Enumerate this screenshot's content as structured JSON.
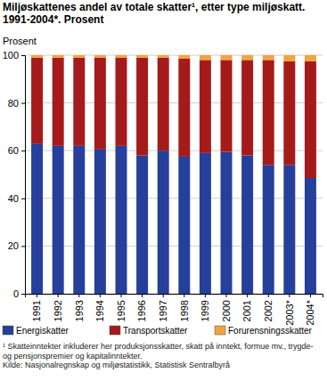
{
  "chart_data": {
    "type": "bar",
    "stacked": true,
    "title": "Miljøskattenes andel av totale skatter¹, etter type miljøskatt. 1991-2004*. Prosent",
    "y_label": "Prosent",
    "categories": [
      "1991",
      "1992",
      "1993",
      "1994",
      "1995",
      "1996",
      "1997",
      "1998",
      "1999",
      "2000",
      "2001",
      "2002",
      "2003*",
      "2004*"
    ],
    "series": [
      {
        "name": "Energiskatter",
        "color": "#253f9a",
        "values": [
          63,
          62,
          62,
          60.5,
          62,
          58,
          60,
          57.5,
          59,
          59.5,
          58,
          54,
          54,
          48.5
        ]
      },
      {
        "name": "Transportskatter",
        "color": "#a51b1b",
        "values": [
          36,
          37,
          37,
          38.5,
          37,
          41,
          39,
          41,
          39,
          38.5,
          40,
          44,
          43.5,
          49
        ]
      },
      {
        "name": "Forurensningsskatter",
        "color": "#f3a33c",
        "values": [
          1,
          1,
          1,
          1,
          1,
          1,
          1,
          1.5,
          2,
          2,
          2,
          2,
          2.5,
          2.5
        ]
      }
    ],
    "ylim": [
      0,
      100
    ],
    "yticks": [
      0,
      20,
      40,
      60,
      80,
      100
    ],
    "grid": true,
    "legend": "bottom",
    "annotations": [
      "¹ Skatteinntekter inkluderer her produksjonsskatter, skatt på inntekt, formue mv., trygde- og pensjonspremier og kapitalinntekter.",
      "Kilde: Nasjonalregnskap og miljøstatistikk, Statistisk Sentralbyrå"
    ]
  }
}
